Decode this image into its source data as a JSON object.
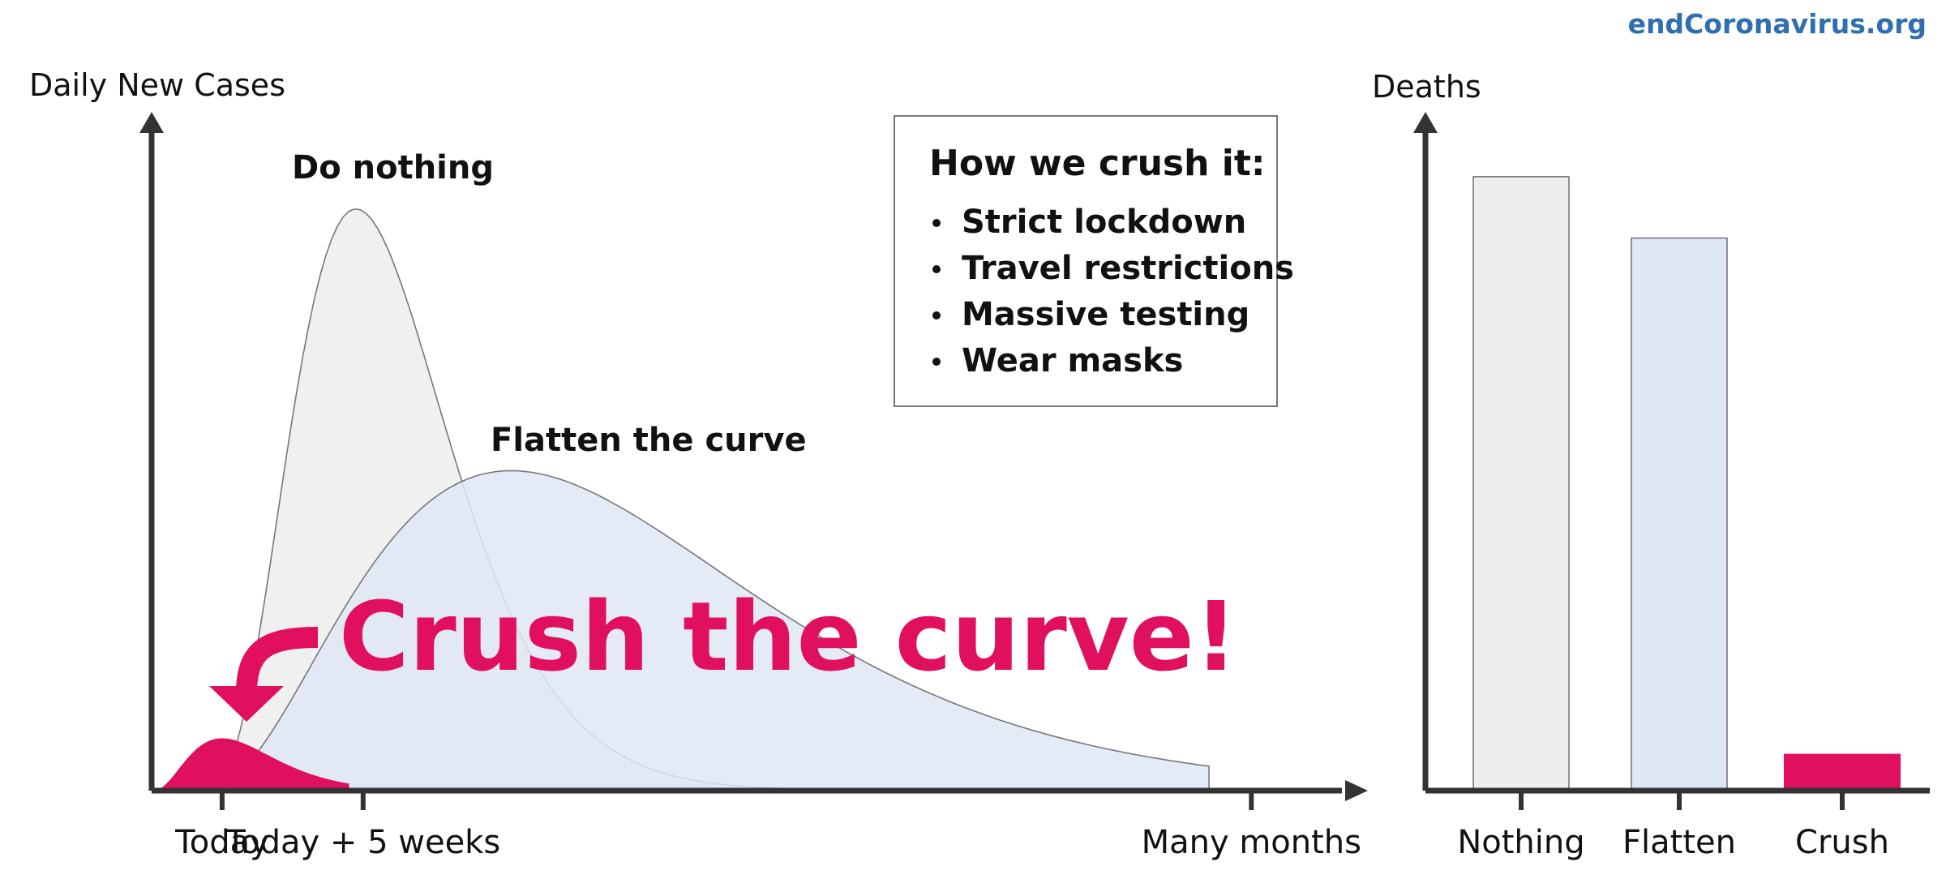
{
  "brand": "endCoronavirus.org",
  "colors": {
    "do_nothing_fill": "#efefef",
    "flatten_fill": "#e1e7f5",
    "crush": "#e0105e",
    "axis": "#333333",
    "brand": "#2f6fb0"
  },
  "chart_data": [
    {
      "type": "area",
      "ylabel": "Daily New Cases",
      "xlabel": "",
      "x_ticks": [
        {
          "label": "Today",
          "x": 0.5
        },
        {
          "label": "Today + 5 weeks",
          "x": 1.5
        },
        {
          "label": "Many months",
          "x": 7.8
        }
      ],
      "xlim": [
        0,
        8.5
      ],
      "ylim": [
        0,
        1.15
      ],
      "series": [
        {
          "name": "Do nothing",
          "color": "#efefef",
          "peak_x": 1.45,
          "peak_y": 1.0,
          "end_x": 6.0
        },
        {
          "name": "Flatten the curve",
          "color": "#e1e7f5",
          "peak_x": 2.55,
          "peak_y": 0.55,
          "end_x": 7.5
        },
        {
          "name": "Crush the curve!",
          "color": "#e0105e",
          "peak_x": 0.5,
          "peak_y": 0.09,
          "end_x": 1.4
        }
      ],
      "annotation": "Crush the curve!",
      "info_box": {
        "title": "How we crush it:",
        "items": [
          "Strict lockdown",
          "Travel restrictions",
          "Massive testing",
          "Wear masks"
        ]
      }
    },
    {
      "type": "bar",
      "ylabel": "Deaths",
      "categories": [
        "Nothing",
        "Flatten",
        "Crush"
      ],
      "values": [
        100,
        90,
        6
      ],
      "colors": [
        "#eeeeee",
        "#e1e7f5",
        "#e0105e"
      ],
      "ylim": [
        0,
        105
      ]
    }
  ]
}
